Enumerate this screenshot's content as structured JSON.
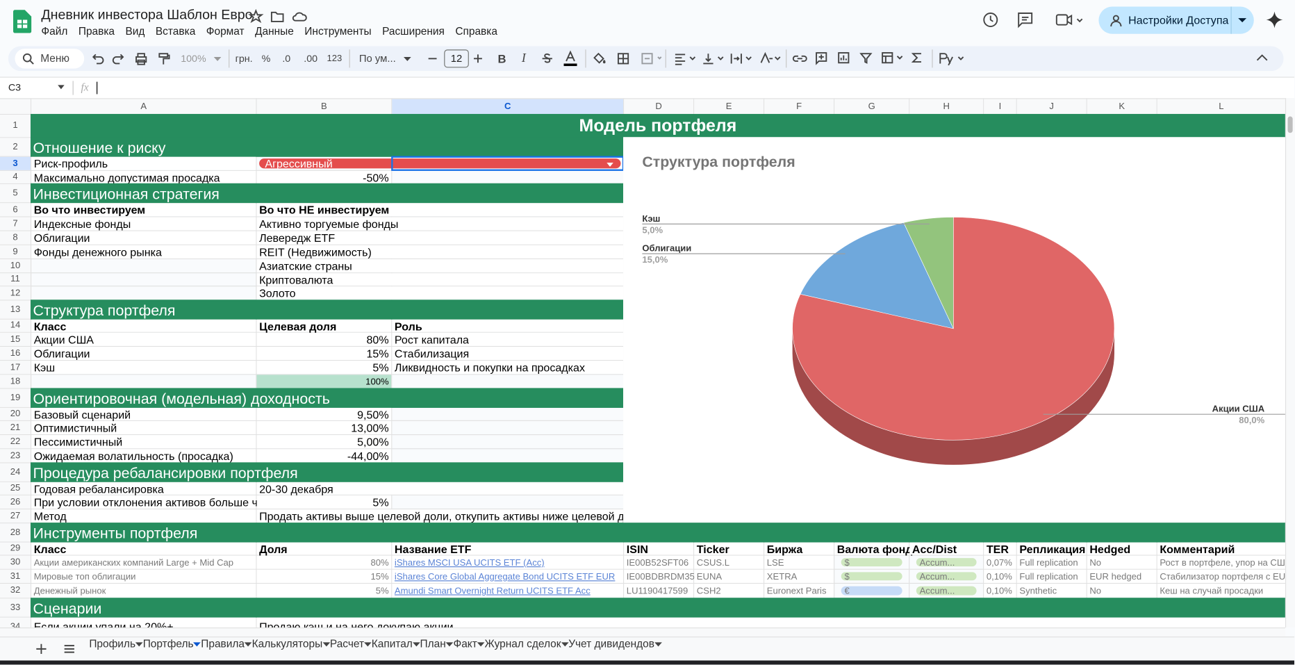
{
  "doc": {
    "title": "Дневник инвестора Шаблон Евро",
    "menu": [
      "Файл",
      "Правка",
      "Вид",
      "Вставка",
      "Формат",
      "Данные",
      "Инструменты",
      "Расширения",
      "Справка"
    ],
    "share": "Настройки Доступа"
  },
  "toolbar": {
    "search": "Меню",
    "zoom": "100%",
    "currency": "грн.",
    "percent": "%",
    "decrease_decimals": ".0",
    "increase_decimals": ".00",
    "number_format": "123",
    "font": "По ум...",
    "font_size": "12",
    "bold": "B",
    "italic": "I"
  },
  "formula_bar": {
    "cell": "C3",
    "fx": "fx"
  },
  "sheet": {
    "columns": [
      "A",
      "B",
      "C",
      "D",
      "E",
      "F",
      "G",
      "H",
      "I",
      "J",
      "K",
      "L"
    ],
    "row_numbers": [
      1,
      2,
      3,
      4,
      5,
      6,
      7,
      8,
      9,
      10,
      11,
      12,
      13,
      14,
      15,
      16,
      17,
      18,
      19,
      20,
      21,
      22,
      23,
      24,
      25,
      26,
      27,
      28,
      29,
      30,
      31,
      32,
      33,
      34
    ],
    "rows": [
      {
        "title": "Модель портфеля"
      },
      {
        "section": "Отношение к риску"
      },
      {
        "cells": {
          "A": "Риск-профиль",
          "B": "Агрессивный"
        }
      },
      {
        "cells": {
          "A": "Максимально допустимая просадка",
          "B": "-50%"
        }
      },
      {
        "section": "Инвестиционная стратегия"
      },
      {
        "header": {
          "A": "Во что инвестируем",
          "B": "Во что НЕ инвестируем"
        }
      },
      {
        "cells": {
          "A": "Индексные фонды",
          "B": "Активно торгуемые фонды"
        }
      },
      {
        "cells": {
          "A": "Облигации",
          "B": "Левередж ETF"
        }
      },
      {
        "cells": {
          "A": "Фонды денежного рынка",
          "B": "REIT (Недвижимость)"
        }
      },
      {
        "cells": {
          "B": "Азиатские страны"
        }
      },
      {
        "cells": {
          "B": "Криптовалюта"
        }
      },
      {
        "cells": {
          "B": "Золото"
        }
      },
      {
        "section": "Структура портфеля"
      },
      {
        "header": {
          "A": "Класс",
          "B": "Целевая доля",
          "C": "Роль"
        }
      },
      {
        "cells": {
          "A": "Акции США",
          "B": "80%",
          "C": "Рост капитала"
        }
      },
      {
        "cells": {
          "A": "Облигации",
          "B": "15%",
          "C": "Стабилизация"
        }
      },
      {
        "cells": {
          "A": "Кэш",
          "B": "5%",
          "C": "Ликвидность и покупки на просадках"
        }
      },
      {
        "cells": {
          "B": "100%"
        }
      },
      {
        "section": "Ориентировочная (модельная) доходность"
      },
      {
        "cells": {
          "A": "Базовый сценарий",
          "B": "9,50%"
        }
      },
      {
        "cells": {
          "A": "Оптимистичный",
          "B": "13,00%"
        }
      },
      {
        "cells": {
          "A": "Пессимистичный",
          "B": "5,00%"
        }
      },
      {
        "cells": {
          "A": "Ожидаемая волатильность (просадка)",
          "B": "-44,00%"
        }
      },
      {
        "section": "Процедура ребалансировки портфеля"
      },
      {
        "cells": {
          "A": "Годовая ребалансировка",
          "B": "20-30 декабря"
        }
      },
      {
        "cells": {
          "A": "При условии отклонения активов больше ч",
          "B": "5%"
        }
      },
      {
        "cells": {
          "A": "Метод",
          "B": "Продать активы выше целевой доли, откупить активы ниже целевой д"
        }
      },
      {
        "section": "Инструменты портфеля"
      },
      {
        "header": {
          "A": "Класс",
          "B": "Доля",
          "C": "Название ETF",
          "D": "ISIN",
          "E": "Ticker",
          "F": "Биржа",
          "G": "Валюта фонд",
          "H": "Acc/Dist",
          "I": "TER",
          "J": "Репликация",
          "K": "Hedged",
          "L": "Комментарий"
        }
      },
      {
        "cells": {
          "A": "Акции американских компаний Large + Mid Cap",
          "B": "80%",
          "C": "iShares MSCI USA UCITS ETF (Acc)",
          "D": "IE00B52SFT06",
          "E": "CSUS.L",
          "F": "LSE",
          "G": "$",
          "H": "Accum...",
          "I": "0,07%",
          "J": "Full replication",
          "K": "No",
          "L": "Рост в портфеле, упор на СШ"
        }
      },
      {
        "cells": {
          "A": "Мировые топ облигации",
          "B": "15%",
          "C": "iShares Core Global Aggregate Bond UCITS ETF EUR",
          "D": "IE00BDBRDM35",
          "E": "EUNA",
          "F": "XETRA",
          "G": "$",
          "H": "Accum...",
          "I": "0,10%",
          "J": "Full replication",
          "K": "EUR hedged",
          "L": "Стабилизатор портфеля с EU"
        }
      },
      {
        "cells": {
          "A": "Денежный рынок",
          "B": "5%",
          "C": "Amundi Smart Overnight Return UCITS ETF Acc",
          "D": "LU1190417599",
          "E": "CSH2",
          "F": "Euronext Paris",
          "G": "€",
          "H": "Accum...",
          "I": "0,10%",
          "J": "Synthetic",
          "K": "No",
          "L": "Кеш на случай просадки"
        }
      },
      {
        "section": "Сценарии"
      },
      {
        "cells": {
          "A": "Если акции упали на 20%+",
          "B": "Продаю кэш и на него докупаю акции"
        }
      }
    ]
  },
  "chart_data": {
    "type": "pie",
    "title": "Структура портфеля",
    "categories": [
      "Акции США",
      "Облигации",
      "Кэш"
    ],
    "values": [
      80,
      15,
      5
    ],
    "value_labels": [
      "80,0%",
      "15,0%",
      "5,0%"
    ],
    "colors": [
      "#e06666",
      "#6fa8dc",
      "#93c47d"
    ],
    "three_d": true
  },
  "tabs": [
    "Профиль",
    "Портфель",
    "Правила",
    "Калькуляторы",
    "Расчет",
    "Капитал",
    "План",
    "Факт",
    "Журнал сделок",
    "Учет дивидендов"
  ],
  "active_tab": "Портфель"
}
